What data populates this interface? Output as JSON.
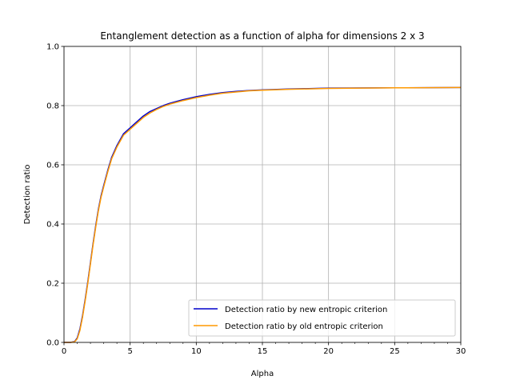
{
  "chart_data": {
    "type": "line",
    "title": "Entanglement detection as a function of alpha for dimensions 2 x 3",
    "xlabel": "Alpha",
    "ylabel": "Detection ratio",
    "xlim": [
      0,
      30
    ],
    "ylim": [
      0.0,
      1.0
    ],
    "xticks": [
      "0",
      "5",
      "10",
      "15",
      "20",
      "25",
      "30"
    ],
    "yticks": [
      "0.0",
      "0.2",
      "0.4",
      "0.6",
      "0.8",
      "1.0"
    ],
    "grid": true,
    "legend_position": "lower-right",
    "x": [
      0,
      0.5,
      0.8,
      1.0,
      1.2,
      1.4,
      1.6,
      1.8,
      2.0,
      2.2,
      2.4,
      2.6,
      2.8,
      3.0,
      3.3,
      3.6,
      4.0,
      4.5,
      5.0,
      5.5,
      6.0,
      6.5,
      7.0,
      7.5,
      8.0,
      9.0,
      10.0,
      11.0,
      12.0,
      13.0,
      14.0,
      15.0,
      17.0,
      20.0,
      25.0,
      30.0
    ],
    "series": [
      {
        "name": "Detection ratio by new entropic criterion",
        "color": "#0000cc",
        "values": [
          0.0,
          0.0,
          0.003,
          0.015,
          0.045,
          0.09,
          0.145,
          0.205,
          0.27,
          0.335,
          0.395,
          0.45,
          0.495,
          0.53,
          0.58,
          0.625,
          0.665,
          0.705,
          0.725,
          0.745,
          0.765,
          0.78,
          0.79,
          0.8,
          0.808,
          0.82,
          0.83,
          0.838,
          0.844,
          0.848,
          0.851,
          0.853,
          0.856,
          0.859,
          0.86,
          0.861
        ]
      },
      {
        "name": "Detection ratio by old entropic criterion",
        "color": "#ff9900",
        "values": [
          0.0,
          0.0,
          0.002,
          0.012,
          0.04,
          0.085,
          0.14,
          0.2,
          0.265,
          0.33,
          0.39,
          0.445,
          0.49,
          0.525,
          0.575,
          0.62,
          0.66,
          0.7,
          0.72,
          0.74,
          0.76,
          0.775,
          0.787,
          0.797,
          0.805,
          0.817,
          0.827,
          0.835,
          0.842,
          0.846,
          0.85,
          0.852,
          0.855,
          0.858,
          0.86,
          0.861
        ]
      }
    ]
  }
}
